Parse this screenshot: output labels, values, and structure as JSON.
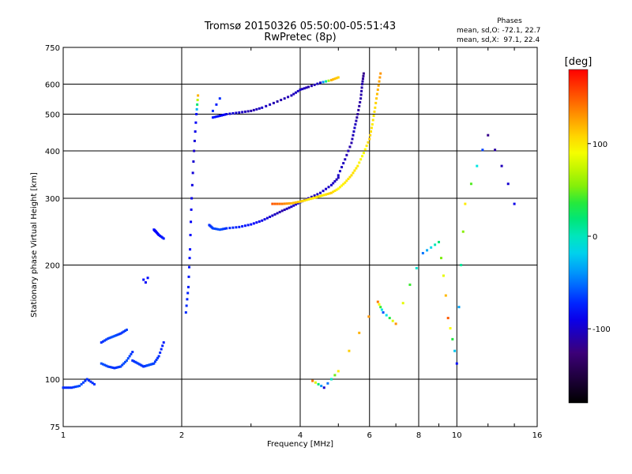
{
  "header": {
    "title": "Tromsø 20150326 05:50:00-05:51:43",
    "subtitle": "RwPretec (8p)"
  },
  "phases": {
    "title": "Phases",
    "o_line": "mean, sd,O: -72.1, 22.7",
    "x_line": "mean, sd,X:  97.1, 22.4"
  },
  "colorbar": {
    "unit": "[deg]",
    "ticks": [
      {
        "label": "100",
        "value": 100
      },
      {
        "label": "0",
        "value": 0
      },
      {
        "label": "-100",
        "value": -100
      }
    ],
    "range": [
      -180,
      180
    ]
  },
  "chart_data": {
    "type": "scatter",
    "title": "Tromsø 20150326 05:50:00-05:51:43",
    "subtitle": "RwPretec (8p)",
    "xlabel": "Frequency [MHz]",
    "ylabel": "Stationary phase Virtual Height [km]",
    "xscale": "log",
    "yscale": "log",
    "xlim": [
      1,
      16
    ],
    "ylim": [
      75,
      750
    ],
    "xticks": [
      1,
      2,
      4,
      6,
      8,
      10,
      16
    ],
    "xtick_labels": [
      "1",
      "2",
      "4",
      "6",
      "8",
      "10",
      "16"
    ],
    "yticks": [
      75,
      100,
      200,
      300,
      400,
      500,
      600,
      750
    ],
    "ytick_labels": [
      "75",
      "100",
      "200",
      "300",
      "400",
      "500",
      "600",
      "750"
    ],
    "grid": true,
    "colorbar_label": "[deg]",
    "colorbar_range": [
      -180,
      180
    ],
    "traces": [
      {
        "description_free": true,
        "freq": [
          1.0,
          1.05,
          1.1,
          1.15,
          1.2
        ],
        "height": [
          95,
          95,
          96,
          100,
          97
        ],
        "phase": [
          -70,
          -70,
          -60,
          -70,
          -70
        ]
      },
      {
        "description_free": true,
        "freq": [
          1.25,
          1.3,
          1.35,
          1.4,
          1.45,
          1.5
        ],
        "height": [
          110,
          108,
          107,
          108,
          112,
          118
        ],
        "phase": [
          -60,
          -65,
          -70,
          -65,
          -60,
          -70
        ]
      },
      {
        "description_free": true,
        "freq": [
          1.5,
          1.55,
          1.6,
          1.65,
          1.7,
          1.75,
          1.8
        ],
        "height": [
          112,
          110,
          108,
          109,
          110,
          115,
          125
        ],
        "phase": [
          -70,
          -65,
          -70,
          -60,
          -65,
          -70,
          -75
        ]
      },
      {
        "description_free": true,
        "freq": [
          1.25,
          1.3,
          1.35,
          1.4,
          1.45
        ],
        "height": [
          125,
          128,
          130,
          132,
          135
        ],
        "phase": [
          -70,
          -65,
          -60,
          -70,
          -65
        ]
      },
      {
        "description_free": true,
        "freq": [
          1.6,
          1.62,
          1.64
        ],
        "height": [
          183,
          180,
          185
        ],
        "phase": [
          -80,
          -85,
          -80
        ]
      },
      {
        "description_free": true,
        "freq": [
          1.7,
          1.72,
          1.75,
          1.8
        ],
        "height": [
          248,
          245,
          240,
          235
        ],
        "phase": [
          -80,
          -85,
          -80,
          -75
        ]
      },
      {
        "description_free": true,
        "freq": [
          2.05,
          2.08,
          2.1,
          2.12,
          2.15,
          2.18,
          2.2
        ],
        "height": [
          150,
          175,
          220,
          300,
          400,
          500,
          560
        ],
        "phase": [
          -70,
          -75,
          -80,
          -90,
          -100,
          -80,
          120
        ]
      },
      {
        "description_free": true,
        "freq": [
          2.35,
          2.4,
          2.5,
          2.6,
          2.8,
          3.0,
          3.2,
          3.4,
          3.6,
          3.8,
          4.0,
          4.2,
          4.5,
          4.8,
          5.0
        ],
        "height": [
          255,
          250,
          248,
          250,
          252,
          256,
          262,
          270,
          278,
          285,
          293,
          300,
          310,
          325,
          340
        ],
        "phase": [
          -70,
          -65,
          -60,
          -70,
          -75,
          -80,
          -90,
          -100,
          -110,
          -100,
          -100,
          -110,
          -100,
          -100,
          -105
        ]
      },
      {
        "description_free": true,
        "freq": [
          5.0,
          5.2,
          5.4,
          5.5,
          5.6,
          5.7,
          5.75,
          5.8
        ],
        "height": [
          345,
          380,
          420,
          460,
          500,
          550,
          600,
          640
        ],
        "phase": [
          -100,
          -105,
          -110,
          -100,
          -115,
          -110,
          -110,
          -120
        ]
      },
      {
        "description_free": true,
        "freq": [
          3.4,
          3.6,
          3.8,
          4.0,
          4.2,
          4.4,
          4.6,
          4.8,
          5.0,
          5.2,
          5.4,
          5.6,
          5.8,
          6.0,
          6.1,
          6.2,
          6.3,
          6.4
        ],
        "height": [
          290,
          290,
          291,
          294,
          298,
          302,
          306,
          310,
          318,
          330,
          345,
          365,
          395,
          430,
          470,
          520,
          580,
          640
        ],
        "phase": [
          150,
          140,
          120,
          110,
          100,
          105,
          100,
          110,
          95,
          100,
          105,
          100,
          90,
          110,
          100,
          105,
          120,
          130
        ]
      },
      {
        "description_free": true,
        "freq": [
          2.4,
          2.5,
          2.6,
          2.8,
          3.0,
          3.2,
          3.5,
          3.8,
          4.0,
          4.2,
          4.5,
          4.8,
          5.0
        ],
        "height": [
          490,
          495,
          500,
          505,
          510,
          520,
          540,
          560,
          580,
          590,
          605,
          615,
          625
        ],
        "phase": [
          -75,
          -80,
          -90,
          -100,
          -110,
          -100,
          -110,
          -105,
          -100,
          -110,
          -100,
          120,
          110
        ]
      },
      {
        "description_free": true,
        "freq": [
          2.4,
          2.45,
          2.5
        ],
        "height": [
          510,
          530,
          550
        ],
        "phase": [
          -70,
          -75,
          -70
        ]
      },
      {
        "description_free": true,
        "freq": [
          4.3,
          4.6,
          5.0,
          6.3,
          6.5,
          7.0,
          8.2,
          9.0,
          9.5,
          10.0,
          10.5,
          12.0,
          14.0
        ],
        "height": [
          99,
          95,
          105,
          160,
          150,
          140,
          215,
          230,
          145,
          110,
          290,
          440,
          290
        ],
        "phase": [
          140,
          -100,
          100,
          140,
          -60,
          130,
          -50,
          20,
          150,
          -80,
          100,
          -120,
          -90
        ]
      }
    ]
  }
}
